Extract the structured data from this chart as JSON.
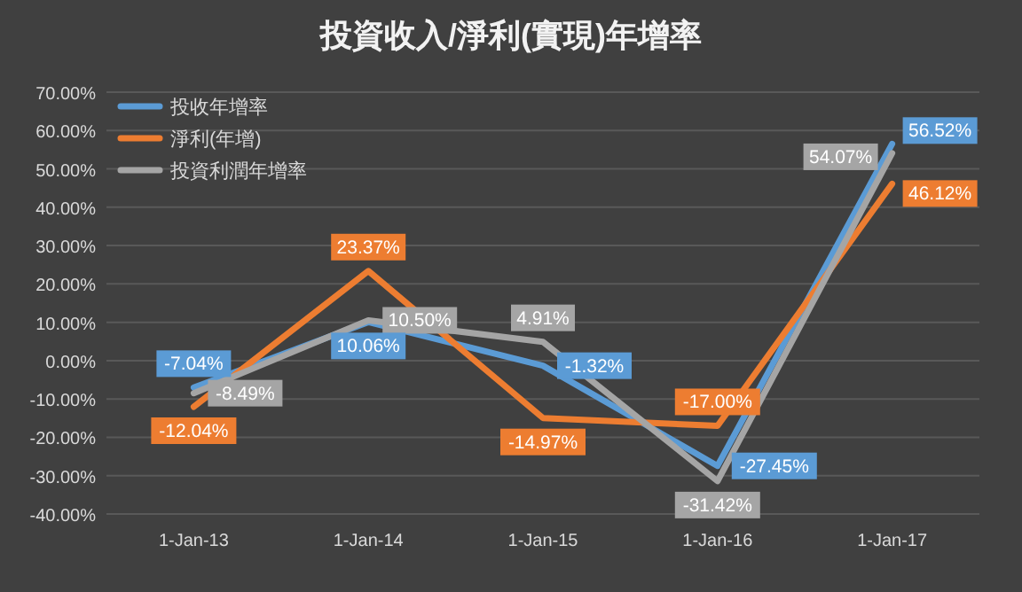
{
  "chart_data": {
    "type": "line",
    "title": "投資收入/淨利(實現)年增率",
    "categories": [
      "1-Jan-13",
      "1-Jan-14",
      "1-Jan-15",
      "1-Jan-16",
      "1-Jan-17"
    ],
    "series": [
      {
        "name": "投收年增率",
        "color": "#5b9bd5",
        "values": [
          -7.04,
          10.06,
          -1.32,
          -27.45,
          56.52
        ],
        "value_labels": [
          "-7.04%",
          "10.06%",
          "-1.32%",
          "-27.45%",
          "56.52%"
        ]
      },
      {
        "name": "淨利(年增)",
        "color": "#ed7d31",
        "values": [
          -12.04,
          23.37,
          -14.97,
          -17.0,
          46.12
        ],
        "value_labels": [
          "-12.04%",
          "23.37%",
          "-14.97%",
          "-17.00%",
          "46.12%"
        ]
      },
      {
        "name": "投資利潤年增率",
        "color": "#a5a5a5",
        "values": [
          -8.49,
          10.5,
          4.91,
          -31.42,
          54.07
        ],
        "value_labels": [
          "-8.49%",
          "10.50%",
          "4.91%",
          "-31.42%",
          "54.07%"
        ]
      }
    ],
    "ylim": [
      -40,
      70
    ],
    "yticks": [
      {
        "value": -40,
        "label": "-40.00%"
      },
      {
        "value": -30,
        "label": "-30.00%"
      },
      {
        "value": -20,
        "label": "-20.00%"
      },
      {
        "value": -10,
        "label": "-10.00%"
      },
      {
        "value": 0,
        "label": "0.00%"
      },
      {
        "value": 10,
        "label": "10.00%"
      },
      {
        "value": 20,
        "label": "20.00%"
      },
      {
        "value": 30,
        "label": "30.00%"
      },
      {
        "value": 40,
        "label": "40.00%"
      },
      {
        "value": 50,
        "label": "50.00%"
      },
      {
        "value": 60,
        "label": "60.00%"
      },
      {
        "value": 70,
        "label": "70.00%"
      }
    ],
    "grid": "y",
    "legend": "top left",
    "marker": "none",
    "line_style": "solid"
  }
}
